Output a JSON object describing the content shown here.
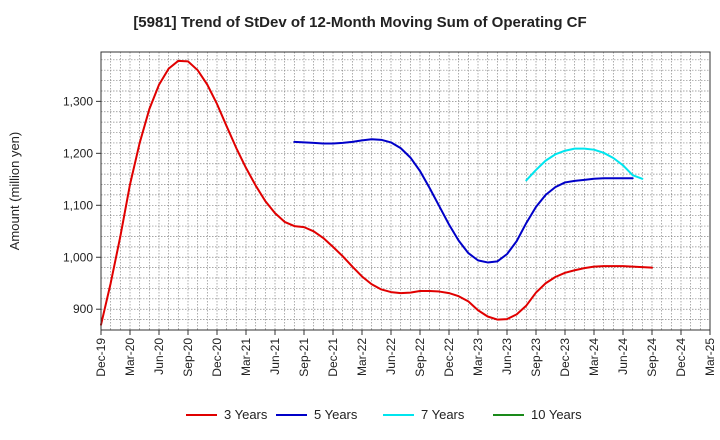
{
  "chart_data": {
    "type": "line",
    "title": "[5981]  Trend of StDev of 12-Month Moving Sum of Operating CF",
    "xlabel": "",
    "ylabel": "Amount (million yen)",
    "x_ticks": [
      "Dec-19",
      "Mar-20",
      "Jun-20",
      "Sep-20",
      "Dec-20",
      "Mar-21",
      "Jun-21",
      "Sep-21",
      "Dec-21",
      "Mar-22",
      "Jun-22",
      "Sep-22",
      "Dec-22",
      "Mar-23",
      "Jun-23",
      "Sep-23",
      "Dec-23",
      "Mar-24",
      "Jun-24",
      "Sep-24",
      "Dec-24",
      "Mar-25"
    ],
    "y_ticks": [
      900,
      1000,
      1100,
      1200,
      1300
    ],
    "ylim": [
      860,
      1395
    ],
    "x_range_months": [
      0,
      63
    ],
    "grid": true,
    "legend_position": "bottom",
    "series": [
      {
        "name": "3 Years",
        "color": "#e00000",
        "points": [
          [
            0,
            870
          ],
          [
            1,
            950
          ],
          [
            2,
            1040
          ],
          [
            3,
            1140
          ],
          [
            4,
            1220
          ],
          [
            5,
            1285
          ],
          [
            6,
            1332
          ],
          [
            7,
            1363
          ],
          [
            8,
            1378
          ],
          [
            9,
            1377
          ],
          [
            10,
            1360
          ],
          [
            11,
            1332
          ],
          [
            12,
            1295
          ],
          [
            13,
            1252
          ],
          [
            14,
            1210
          ],
          [
            15,
            1172
          ],
          [
            16,
            1138
          ],
          [
            17,
            1108
          ],
          [
            18,
            1085
          ],
          [
            19,
            1068
          ],
          [
            20,
            1060
          ],
          [
            21,
            1058
          ],
          [
            22,
            1050
          ],
          [
            23,
            1037
          ],
          [
            24,
            1020
          ],
          [
            25,
            1002
          ],
          [
            26,
            982
          ],
          [
            27,
            963
          ],
          [
            28,
            948
          ],
          [
            29,
            938
          ],
          [
            30,
            933
          ],
          [
            31,
            931
          ],
          [
            32,
            932
          ],
          [
            33,
            935
          ],
          [
            34,
            935
          ],
          [
            35,
            934
          ],
          [
            36,
            931
          ],
          [
            37,
            925
          ],
          [
            38,
            915
          ],
          [
            39,
            898
          ],
          [
            40,
            886
          ],
          [
            41,
            880
          ],
          [
            42,
            881
          ],
          [
            43,
            890
          ],
          [
            44,
            907
          ],
          [
            45,
            932
          ],
          [
            46,
            950
          ],
          [
            47,
            962
          ],
          [
            48,
            970
          ],
          [
            49,
            975
          ],
          [
            50,
            979
          ],
          [
            51,
            982
          ],
          [
            52,
            983
          ],
          [
            53,
            983
          ],
          [
            54,
            983
          ],
          [
            55,
            982
          ],
          [
            56,
            981
          ],
          [
            57,
            980
          ]
        ]
      },
      {
        "name": "5 Years",
        "color": "#0000c8",
        "points": [
          [
            20,
            1222
          ],
          [
            21,
            1221
          ],
          [
            22,
            1220
          ],
          [
            23,
            1219
          ],
          [
            24,
            1219
          ],
          [
            25,
            1220
          ],
          [
            26,
            1222
          ],
          [
            27,
            1225
          ],
          [
            28,
            1227
          ],
          [
            29,
            1226
          ],
          [
            30,
            1221
          ],
          [
            31,
            1210
          ],
          [
            32,
            1192
          ],
          [
            33,
            1166
          ],
          [
            34,
            1133
          ],
          [
            35,
            1098
          ],
          [
            36,
            1063
          ],
          [
            37,
            1032
          ],
          [
            38,
            1008
          ],
          [
            39,
            994
          ],
          [
            40,
            990
          ],
          [
            41,
            992
          ],
          [
            42,
            1006
          ],
          [
            43,
            1031
          ],
          [
            44,
            1066
          ],
          [
            45,
            1097
          ],
          [
            46,
            1120
          ],
          [
            47,
            1135
          ],
          [
            48,
            1144
          ],
          [
            49,
            1147
          ],
          [
            50,
            1149
          ],
          [
            51,
            1151
          ],
          [
            52,
            1152
          ],
          [
            53,
            1152
          ],
          [
            54,
            1152
          ],
          [
            55,
            1152
          ]
        ]
      },
      {
        "name": "7 Years",
        "color": "#00e5ee",
        "points": [
          [
            44,
            1148
          ],
          [
            45,
            1168
          ],
          [
            46,
            1186
          ],
          [
            47,
            1198
          ],
          [
            48,
            1205
          ],
          [
            49,
            1209
          ],
          [
            50,
            1209
          ],
          [
            51,
            1207
          ],
          [
            52,
            1201
          ],
          [
            53,
            1191
          ],
          [
            54,
            1177
          ],
          [
            55,
            1158
          ],
          [
            56,
            1151
          ]
        ]
      },
      {
        "name": "10 Years",
        "color": "#1a8a1a",
        "points": []
      }
    ]
  }
}
